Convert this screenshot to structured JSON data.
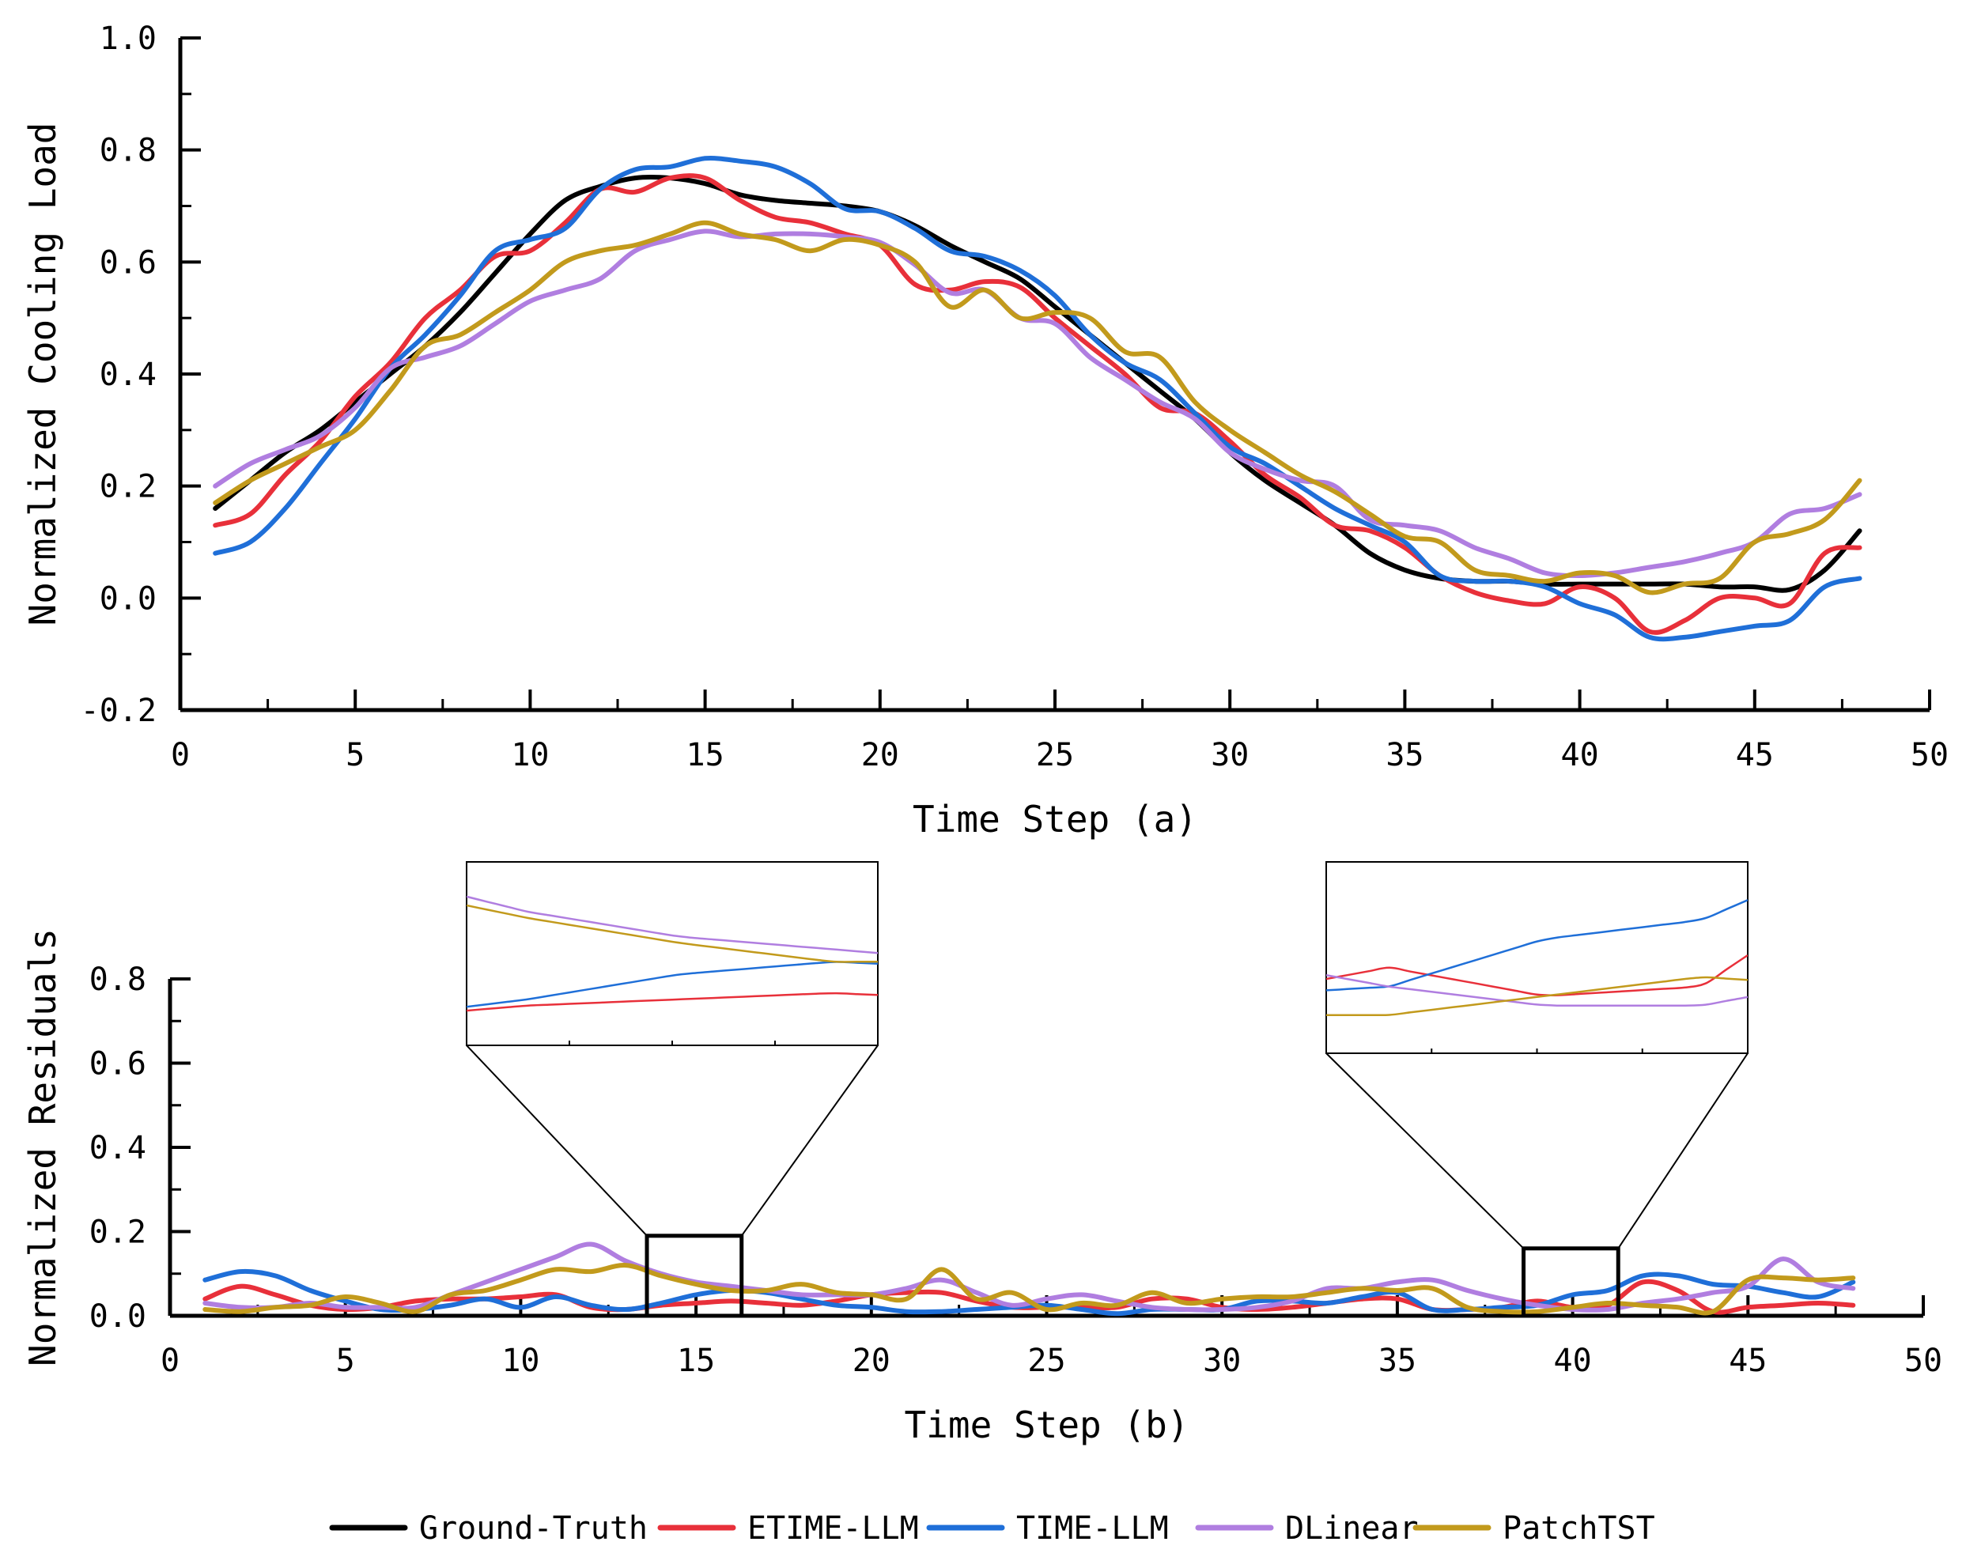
{
  "chart_data": [
    {
      "id": "a",
      "type": "line",
      "xlabel": "Time Step (a)",
      "ylabel": "Normalized Cooling Load",
      "xlim": [
        0,
        50
      ],
      "ylim": [
        -0.2,
        1.0
      ],
      "xticks": [
        "0",
        "5",
        "10",
        "15",
        "20",
        "25",
        "30",
        "35",
        "40",
        "45",
        "50"
      ],
      "yticks": [
        "-0.2",
        "0.0",
        "0.2",
        "0.4",
        "0.6",
        "0.8",
        "1.0"
      ],
      "x": [
        1,
        2,
        3,
        4,
        5,
        6,
        7,
        8,
        9,
        10,
        11,
        12,
        13,
        14,
        15,
        16,
        17,
        18,
        19,
        20,
        21,
        22,
        23,
        24,
        25,
        26,
        27,
        28,
        29,
        30,
        31,
        32,
        33,
        34,
        35,
        36,
        37,
        38,
        39,
        40,
        41,
        42,
        43,
        44,
        45,
        46,
        47,
        48
      ],
      "series": [
        {
          "name": "Ground-Truth",
          "color": "#000000",
          "values": [
            0.16,
            0.21,
            0.26,
            0.3,
            0.35,
            0.4,
            0.45,
            0.51,
            0.58,
            0.65,
            0.71,
            0.735,
            0.75,
            0.75,
            0.74,
            0.72,
            0.71,
            0.705,
            0.7,
            0.69,
            0.665,
            0.63,
            0.6,
            0.57,
            0.52,
            0.47,
            0.42,
            0.37,
            0.32,
            0.26,
            0.21,
            0.17,
            0.13,
            0.08,
            0.05,
            0.035,
            0.03,
            0.03,
            0.025,
            0.025,
            0.025,
            0.025,
            0.025,
            0.02,
            0.02,
            0.015,
            0.05,
            0.12
          ]
        },
        {
          "name": "ETIME-LLM",
          "color": "#e8303a",
          "values": [
            0.13,
            0.15,
            0.22,
            0.28,
            0.36,
            0.42,
            0.5,
            0.55,
            0.61,
            0.62,
            0.67,
            0.73,
            0.725,
            0.75,
            0.75,
            0.71,
            0.68,
            0.67,
            0.65,
            0.63,
            0.56,
            0.55,
            0.565,
            0.555,
            0.5,
            0.45,
            0.4,
            0.34,
            0.33,
            0.28,
            0.22,
            0.18,
            0.13,
            0.12,
            0.09,
            0.04,
            0.01,
            -0.005,
            -0.01,
            0.02,
            0.0,
            -0.06,
            -0.04,
            0.0,
            0.0,
            -0.01,
            0.08,
            0.09
          ]
        },
        {
          "name": "TIME-LLM",
          "color": "#1f6fd8",
          "values": [
            0.08,
            0.1,
            0.16,
            0.24,
            0.32,
            0.41,
            0.47,
            0.54,
            0.62,
            0.64,
            0.66,
            0.73,
            0.765,
            0.77,
            0.785,
            0.78,
            0.77,
            0.74,
            0.695,
            0.69,
            0.66,
            0.62,
            0.61,
            0.585,
            0.54,
            0.47,
            0.42,
            0.39,
            0.33,
            0.27,
            0.24,
            0.2,
            0.16,
            0.13,
            0.1,
            0.04,
            0.03,
            0.03,
            0.02,
            -0.01,
            -0.03,
            -0.07,
            -0.07,
            -0.06,
            -0.05,
            -0.04,
            0.02,
            0.035
          ]
        },
        {
          "name": "DLinear",
          "color": "#b07ee0",
          "values": [
            0.2,
            0.24,
            0.265,
            0.29,
            0.34,
            0.41,
            0.43,
            0.45,
            0.49,
            0.53,
            0.55,
            0.57,
            0.62,
            0.64,
            0.655,
            0.645,
            0.65,
            0.65,
            0.645,
            0.635,
            0.595,
            0.545,
            0.55,
            0.5,
            0.49,
            0.43,
            0.39,
            0.35,
            0.32,
            0.26,
            0.23,
            0.21,
            0.2,
            0.14,
            0.13,
            0.12,
            0.09,
            0.07,
            0.045,
            0.04,
            0.045,
            0.055,
            0.065,
            0.08,
            0.1,
            0.15,
            0.16,
            0.185
          ]
        },
        {
          "name": "PatchTST",
          "color": "#c29a1c",
          "values": [
            0.17,
            0.21,
            0.24,
            0.27,
            0.3,
            0.37,
            0.45,
            0.47,
            0.51,
            0.55,
            0.6,
            0.62,
            0.63,
            0.65,
            0.67,
            0.65,
            0.64,
            0.62,
            0.64,
            0.63,
            0.6,
            0.52,
            0.55,
            0.5,
            0.51,
            0.5,
            0.44,
            0.43,
            0.35,
            0.3,
            0.26,
            0.22,
            0.19,
            0.15,
            0.11,
            0.1,
            0.05,
            0.04,
            0.03,
            0.045,
            0.04,
            0.01,
            0.025,
            0.035,
            0.1,
            0.115,
            0.14,
            0.21
          ]
        }
      ]
    },
    {
      "id": "b",
      "type": "line",
      "xlabel": "Time Step (b)",
      "ylabel": "Normalized Residuals",
      "xlim": [
        0,
        50
      ],
      "ylim": [
        0.0,
        0.8
      ],
      "xticks": [
        "0",
        "5",
        "10",
        "15",
        "20",
        "25",
        "30",
        "35",
        "40",
        "45",
        "50"
      ],
      "yticks": [
        "0.0",
        "0.2",
        "0.4",
        "0.6",
        "0.8"
      ],
      "x": [
        1,
        2,
        3,
        4,
        5,
        6,
        7,
        8,
        9,
        10,
        11,
        12,
        13,
        14,
        15,
        16,
        17,
        18,
        19,
        20,
        21,
        22,
        23,
        24,
        25,
        26,
        27,
        28,
        29,
        30,
        31,
        32,
        33,
        34,
        35,
        36,
        37,
        38,
        39,
        40,
        41,
        42,
        43,
        44,
        45,
        46,
        47,
        48
      ],
      "series": [
        {
          "name": "ETIME-LLM",
          "color": "#e8303a",
          "values": [
            0.04,
            0.07,
            0.05,
            0.025,
            0.015,
            0.02,
            0.035,
            0.04,
            0.04,
            0.045,
            0.05,
            0.02,
            0.015,
            0.025,
            0.03,
            0.035,
            0.03,
            0.025,
            0.035,
            0.05,
            0.055,
            0.055,
            0.035,
            0.02,
            0.02,
            0.02,
            0.02,
            0.04,
            0.04,
            0.02,
            0.015,
            0.02,
            0.03,
            0.04,
            0.04,
            0.015,
            0.015,
            0.02,
            0.035,
            0.02,
            0.025,
            0.08,
            0.06,
            0.01,
            0.02,
            0.025,
            0.03,
            0.025
          ]
        },
        {
          "name": "TIME-LLM",
          "color": "#1f6fd8",
          "values": [
            0.085,
            0.105,
            0.095,
            0.06,
            0.035,
            0.015,
            0.015,
            0.025,
            0.04,
            0.02,
            0.045,
            0.025,
            0.015,
            0.03,
            0.05,
            0.06,
            0.055,
            0.04,
            0.025,
            0.02,
            0.01,
            0.01,
            0.015,
            0.02,
            0.025,
            0.015,
            0.005,
            0.015,
            0.015,
            0.015,
            0.035,
            0.035,
            0.03,
            0.045,
            0.055,
            0.015,
            0.015,
            0.02,
            0.025,
            0.05,
            0.06,
            0.095,
            0.095,
            0.075,
            0.07,
            0.055,
            0.045,
            0.08
          ]
        },
        {
          "name": "DLinear",
          "color": "#b07ee0",
          "values": [
            0.03,
            0.02,
            0.02,
            0.03,
            0.02,
            0.02,
            0.02,
            0.05,
            0.08,
            0.11,
            0.14,
            0.17,
            0.13,
            0.1,
            0.08,
            0.07,
            0.06,
            0.05,
            0.05,
            0.05,
            0.065,
            0.085,
            0.055,
            0.025,
            0.04,
            0.05,
            0.035,
            0.02,
            0.015,
            0.015,
            0.02,
            0.035,
            0.065,
            0.065,
            0.08,
            0.085,
            0.06,
            0.04,
            0.025,
            0.015,
            0.015,
            0.03,
            0.04,
            0.055,
            0.07,
            0.135,
            0.08,
            0.065
          ]
        },
        {
          "name": "PatchTST",
          "color": "#c29a1c",
          "values": [
            0.015,
            0.01,
            0.02,
            0.025,
            0.045,
            0.03,
            0.01,
            0.05,
            0.06,
            0.085,
            0.11,
            0.105,
            0.12,
            0.095,
            0.075,
            0.06,
            0.06,
            0.075,
            0.055,
            0.05,
            0.04,
            0.11,
            0.04,
            0.055,
            0.015,
            0.03,
            0.025,
            0.055,
            0.03,
            0.04,
            0.045,
            0.045,
            0.055,
            0.065,
            0.06,
            0.065,
            0.02,
            0.01,
            0.01,
            0.02,
            0.03,
            0.025,
            0.02,
            0.01,
            0.085,
            0.09,
            0.085,
            0.09
          ]
        }
      ],
      "zoom_boxes": [
        {
          "x_range": [
            13.6,
            16.3
          ],
          "y_range": [
            0.0,
            0.19
          ]
        },
        {
          "x_range": [
            38.6,
            41.3
          ],
          "y_range": [
            0.0,
            0.16
          ]
        }
      ]
    }
  ],
  "legend": [
    {
      "label": "Ground-Truth",
      "color": "#000000"
    },
    {
      "label": "ETIME-LLM",
      "color": "#e8303a"
    },
    {
      "label": "TIME-LLM",
      "color": "#1f6fd8"
    },
    {
      "label": "DLinear",
      "color": "#b07ee0"
    },
    {
      "label": "PatchTST",
      "color": "#c29a1c"
    }
  ]
}
